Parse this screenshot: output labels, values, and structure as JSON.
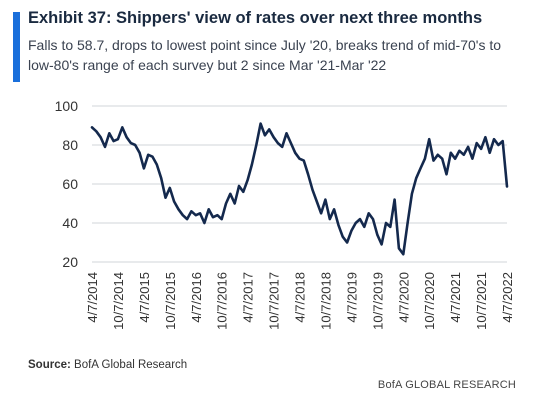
{
  "header": {
    "title": "Exhibit 37: Shippers' view of rates over next three months",
    "subtitle": "Falls to 58.7, drops to lowest point since July '20, breaks trend of mid-70's to low-80's range of each survey but 2 since Mar '21-Mar '22",
    "accent_color": "#1a6fdb"
  },
  "footer": {
    "source_label": "Source:",
    "source_text": "BofA Global Research",
    "brand": "BofA GLOBAL RESEARCH"
  },
  "chart_data": {
    "type": "line",
    "title": "",
    "xlabel": "",
    "ylabel": "",
    "ylim": [
      20,
      100
    ],
    "yticks": [
      20,
      40,
      60,
      80,
      100
    ],
    "grid": "horizontal",
    "line_color": "#14294d",
    "x_tick_labels": [
      "4/7/2014",
      "10/7/2014",
      "4/7/2015",
      "10/7/2015",
      "4/7/2016",
      "10/7/2016",
      "4/7/2017",
      "10/7/2017",
      "4/7/2018",
      "10/7/2018",
      "4/7/2019",
      "10/7/2019",
      "4/7/2020",
      "10/7/2020",
      "4/7/2021",
      "10/7/2021",
      "4/7/2022"
    ],
    "x": [
      "2014-04",
      "2014-05",
      "2014-06",
      "2014-07",
      "2014-08",
      "2014-09",
      "2014-10",
      "2014-11",
      "2014-12",
      "2015-01",
      "2015-02",
      "2015-03",
      "2015-04",
      "2015-05",
      "2015-06",
      "2015-07",
      "2015-08",
      "2015-09",
      "2015-10",
      "2015-11",
      "2015-12",
      "2016-01",
      "2016-02",
      "2016-03",
      "2016-04",
      "2016-05",
      "2016-06",
      "2016-07",
      "2016-08",
      "2016-09",
      "2016-10",
      "2016-11",
      "2016-12",
      "2017-01",
      "2017-02",
      "2017-03",
      "2017-04",
      "2017-05",
      "2017-06",
      "2017-07",
      "2017-08",
      "2017-09",
      "2017-10",
      "2017-11",
      "2017-12",
      "2018-01",
      "2018-02",
      "2018-03",
      "2018-04",
      "2018-05",
      "2018-06",
      "2018-07",
      "2018-08",
      "2018-09",
      "2018-10",
      "2018-11",
      "2018-12",
      "2019-01",
      "2019-02",
      "2019-03",
      "2019-04",
      "2019-05",
      "2019-06",
      "2019-07",
      "2019-08",
      "2019-09",
      "2019-10",
      "2019-11",
      "2019-12",
      "2020-01",
      "2020-02",
      "2020-03",
      "2020-04",
      "2020-05",
      "2020-06",
      "2020-07",
      "2020-08",
      "2020-09",
      "2020-10",
      "2020-11",
      "2020-12",
      "2021-01",
      "2021-02",
      "2021-03",
      "2021-04",
      "2021-05",
      "2021-06",
      "2021-07",
      "2021-08",
      "2021-09",
      "2021-10",
      "2021-11",
      "2021-12",
      "2022-01",
      "2022-02",
      "2022-03",
      "2022-04"
    ],
    "series": [
      {
        "values": [
          89,
          87,
          84,
          79,
          86,
          82,
          83,
          89,
          84,
          81,
          80,
          76,
          68,
          75,
          74,
          70,
          63,
          53,
          58,
          51,
          47,
          44,
          42,
          46,
          44,
          45,
          40,
          47,
          43,
          44,
          42,
          50,
          55,
          50,
          59,
          56,
          62,
          70,
          80,
          91,
          85,
          88,
          84,
          81,
          79,
          86,
          81,
          76,
          73,
          72,
          65,
          57,
          51,
          45,
          52,
          42,
          47,
          39,
          33,
          30,
          36,
          40,
          42,
          38,
          45,
          42,
          34,
          29,
          40,
          38,
          52,
          27,
          24,
          40,
          55,
          63,
          68,
          73,
          83,
          72,
          75,
          73,
          65,
          76,
          73,
          77,
          75,
          79,
          73,
          81,
          78,
          84,
          76,
          83,
          80,
          82,
          58.7
        ]
      }
    ],
    "annotation_last_value": 58.7
  }
}
